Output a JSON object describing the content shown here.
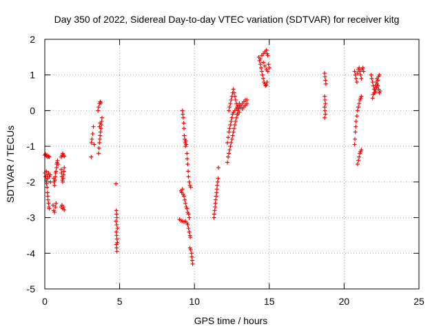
{
  "chart_data": {
    "type": "scatter",
    "title": "Day 350 of 2022, Sidereal Day-to-day VTEC variation (SDTVAR) for receiver kitg",
    "xlabel": "GPS time / hours",
    "ylabel": "SDTVAR / TECUs",
    "xlim": [
      0,
      25
    ],
    "ylim": [
      -5,
      2
    ],
    "xticks": [
      0,
      5,
      10,
      15,
      20,
      25
    ],
    "yticks": [
      -5,
      -4,
      -3,
      -2,
      -1,
      0,
      1,
      2
    ],
    "grid": true,
    "marker": "+",
    "color": "#ff0000",
    "series": [
      {
        "name": "SDTVAR",
        "points": [
          [
            0.0,
            -1.25
          ],
          [
            0.05,
            -1.22
          ],
          [
            0.1,
            -1.28
          ],
          [
            0.15,
            -1.25
          ],
          [
            0.2,
            -1.3
          ],
          [
            0.25,
            -1.28
          ],
          [
            0.3,
            -1.3
          ],
          [
            0.0,
            -1.75
          ],
          [
            0.05,
            -1.85
          ],
          [
            0.1,
            -1.95
          ],
          [
            0.12,
            -2.05
          ],
          [
            0.15,
            -2.15
          ],
          [
            0.18,
            -2.3
          ],
          [
            0.2,
            -2.4
          ],
          [
            0.22,
            -2.5
          ],
          [
            0.25,
            -2.6
          ],
          [
            0.28,
            -2.7
          ],
          [
            0.3,
            -2.75
          ],
          [
            0.1,
            -1.7
          ],
          [
            0.15,
            -1.8
          ],
          [
            0.2,
            -1.9
          ],
          [
            0.25,
            -1.75
          ],
          [
            0.3,
            -1.85
          ],
          [
            0.35,
            -1.8
          ],
          [
            0.38,
            -2.0
          ],
          [
            0.55,
            -2.65
          ],
          [
            0.6,
            -2.8
          ],
          [
            0.65,
            -2.85
          ],
          [
            0.7,
            -2.7
          ],
          [
            0.75,
            -2.6
          ],
          [
            0.6,
            -1.9
          ],
          [
            0.62,
            -2.0
          ],
          [
            0.65,
            -2.1
          ],
          [
            0.68,
            -1.95
          ],
          [
            0.7,
            -1.85
          ],
          [
            0.72,
            -1.75
          ],
          [
            0.75,
            -1.7
          ],
          [
            0.78,
            -1.6
          ],
          [
            0.8,
            -1.5
          ],
          [
            0.82,
            -1.45
          ],
          [
            0.85,
            -1.4
          ],
          [
            0.88,
            -1.5
          ],
          [
            1.1,
            -1.3
          ],
          [
            1.15,
            -1.25
          ],
          [
            1.2,
            -1.2
          ],
          [
            1.25,
            -1.25
          ],
          [
            1.3,
            -1.28
          ],
          [
            1.1,
            -1.65
          ],
          [
            1.12,
            -1.75
          ],
          [
            1.15,
            -1.85
          ],
          [
            1.18,
            -1.95
          ],
          [
            1.2,
            -2.0
          ],
          [
            1.22,
            -1.9
          ],
          [
            1.25,
            -1.8
          ],
          [
            1.28,
            -1.7
          ],
          [
            1.3,
            -1.6
          ],
          [
            1.1,
            -2.7
          ],
          [
            1.15,
            -2.65
          ],
          [
            1.2,
            -2.75
          ],
          [
            1.25,
            -2.7
          ],
          [
            1.3,
            -2.78
          ],
          [
            3.1,
            -1.3
          ],
          [
            3.12,
            -0.9
          ],
          [
            3.15,
            -0.8
          ],
          [
            3.2,
            -0.65
          ],
          [
            3.25,
            -0.45
          ],
          [
            3.3,
            -0.95
          ],
          [
            3.6,
            -1.2
          ],
          [
            3.62,
            -1.05
          ],
          [
            3.65,
            -0.9
          ],
          [
            3.68,
            -0.8
          ],
          [
            3.7,
            -0.7
          ],
          [
            3.72,
            -0.6
          ],
          [
            3.75,
            -0.5
          ],
          [
            3.78,
            -0.4
          ],
          [
            3.8,
            -0.3
          ],
          [
            3.82,
            -0.2
          ],
          [
            3.65,
            -0.45
          ],
          [
            3.7,
            -0.35
          ],
          [
            3.55,
            0.0
          ],
          [
            3.6,
            0.1
          ],
          [
            3.65,
            0.2
          ],
          [
            3.7,
            0.25
          ],
          [
            3.75,
            0.22
          ],
          [
            4.75,
            -2.05
          ],
          [
            4.78,
            -2.8
          ],
          [
            4.8,
            -2.9
          ],
          [
            4.82,
            -3.0
          ],
          [
            4.75,
            -3.1
          ],
          [
            4.8,
            -3.2
          ],
          [
            4.85,
            -3.3
          ],
          [
            4.78,
            -3.4
          ],
          [
            4.8,
            -3.5
          ],
          [
            4.82,
            -3.6
          ],
          [
            4.85,
            -3.7
          ],
          [
            4.78,
            -3.75
          ],
          [
            4.8,
            -3.85
          ],
          [
            4.82,
            -3.95
          ],
          [
            9.0,
            -3.05
          ],
          [
            9.1,
            -3.08
          ],
          [
            9.2,
            -3.1
          ],
          [
            9.3,
            -3.12
          ],
          [
            9.4,
            -3.1
          ],
          [
            9.5,
            -3.15
          ],
          [
            9.55,
            -3.2
          ],
          [
            9.6,
            -3.3
          ],
          [
            9.65,
            -3.4
          ],
          [
            9.7,
            -3.5
          ],
          [
            9.72,
            -3.55
          ],
          [
            9.1,
            -2.25
          ],
          [
            9.15,
            -2.3
          ],
          [
            9.2,
            -2.2
          ],
          [
            9.25,
            -2.35
          ],
          [
            9.3,
            -2.4
          ],
          [
            9.35,
            -2.5
          ],
          [
            9.4,
            -2.6
          ],
          [
            9.45,
            -2.7
          ],
          [
            9.5,
            -2.75
          ],
          [
            9.55,
            -2.85
          ],
          [
            9.6,
            -2.9
          ],
          [
            9.65,
            -3.0
          ],
          [
            9.2,
            0.0
          ],
          [
            9.22,
            -0.1
          ],
          [
            9.25,
            -0.2
          ],
          [
            9.28,
            -0.35
          ],
          [
            9.3,
            -0.5
          ],
          [
            9.32,
            -0.7
          ],
          [
            9.35,
            -0.8
          ],
          [
            9.38,
            -0.9
          ],
          [
            9.4,
            -1.0
          ],
          [
            9.42,
            -0.85
          ],
          [
            9.45,
            -0.95
          ],
          [
            9.5,
            -1.2
          ],
          [
            9.52,
            -1.35
          ],
          [
            9.55,
            -1.5
          ],
          [
            9.58,
            -1.7
          ],
          [
            9.6,
            -1.85
          ],
          [
            9.65,
            -2.0
          ],
          [
            9.7,
            -2.1
          ],
          [
            9.75,
            -2.15
          ],
          [
            9.7,
            -3.85
          ],
          [
            9.75,
            -3.9
          ],
          [
            9.8,
            -4.0
          ],
          [
            9.82,
            -4.1
          ],
          [
            9.85,
            -4.2
          ],
          [
            9.88,
            -4.3
          ],
          [
            11.3,
            -3.0
          ],
          [
            11.32,
            -2.9
          ],
          [
            11.35,
            -2.8
          ],
          [
            11.38,
            -2.7
          ],
          [
            11.4,
            -2.6
          ],
          [
            11.42,
            -2.5
          ],
          [
            11.45,
            -2.4
          ],
          [
            11.48,
            -2.3
          ],
          [
            11.5,
            -2.2
          ],
          [
            11.52,
            -2.1
          ],
          [
            11.55,
            -2.0
          ],
          [
            11.58,
            -1.9
          ],
          [
            11.6,
            -1.6
          ],
          [
            12.2,
            -1.45
          ],
          [
            12.25,
            -1.3
          ],
          [
            12.3,
            -1.2
          ],
          [
            12.35,
            -1.1
          ],
          [
            12.4,
            -1.0
          ],
          [
            12.45,
            -0.9
          ],
          [
            12.5,
            -0.8
          ],
          [
            12.55,
            -0.7
          ],
          [
            12.6,
            -0.6
          ],
          [
            12.65,
            -0.5
          ],
          [
            12.7,
            -0.4
          ],
          [
            12.75,
            -0.3
          ],
          [
            12.8,
            -0.2
          ],
          [
            12.85,
            -0.1
          ],
          [
            12.9,
            0.0
          ],
          [
            12.95,
            0.05
          ],
          [
            13.0,
            0.1
          ],
          [
            13.1,
            0.15
          ],
          [
            13.2,
            0.2
          ],
          [
            13.3,
            0.25
          ],
          [
            13.4,
            0.3
          ],
          [
            13.5,
            0.3
          ],
          [
            12.3,
            0.0
          ],
          [
            12.35,
            0.1
          ],
          [
            12.4,
            0.2
          ],
          [
            12.45,
            0.3
          ],
          [
            12.5,
            0.4
          ],
          [
            12.55,
            0.5
          ],
          [
            12.6,
            0.6
          ],
          [
            12.65,
            0.5
          ],
          [
            12.7,
            0.4
          ],
          [
            12.75,
            0.3
          ],
          [
            12.8,
            0.2
          ],
          [
            12.85,
            0.1
          ],
          [
            12.9,
            0.15
          ],
          [
            13.0,
            0.2
          ],
          [
            13.1,
            0.1
          ],
          [
            13.2,
            0.05
          ],
          [
            13.3,
            0.1
          ],
          [
            13.4,
            0.15
          ],
          [
            13.5,
            0.2
          ],
          [
            12.2,
            -0.9
          ],
          [
            12.25,
            -0.75
          ],
          [
            12.3,
            -0.6
          ],
          [
            12.35,
            -0.5
          ],
          [
            12.4,
            -0.4
          ],
          [
            12.45,
            -0.3
          ],
          [
            12.5,
            -0.2
          ],
          [
            12.55,
            -0.1
          ],
          [
            12.6,
            -0.05
          ],
          [
            12.7,
            0.0
          ],
          [
            12.8,
            0.05
          ],
          [
            12.9,
            -0.1
          ],
          [
            13.0,
            -0.05
          ],
          [
            14.3,
            1.5
          ],
          [
            14.35,
            1.4
          ],
          [
            14.4,
            1.3
          ],
          [
            14.45,
            1.2
          ],
          [
            14.5,
            1.1
          ],
          [
            14.55,
            1.0
          ],
          [
            14.6,
            0.9
          ],
          [
            14.65,
            0.8
          ],
          [
            14.7,
            0.75
          ],
          [
            14.75,
            0.7
          ],
          [
            14.8,
            0.72
          ],
          [
            14.85,
            0.8
          ],
          [
            14.4,
            1.45
          ],
          [
            14.5,
            1.55
          ],
          [
            14.6,
            1.6
          ],
          [
            14.7,
            1.65
          ],
          [
            14.8,
            1.7
          ],
          [
            14.85,
            1.6
          ],
          [
            14.9,
            1.55
          ],
          [
            14.95,
            1.3
          ],
          [
            15.0,
            1.2
          ],
          [
            14.9,
            1.1
          ],
          [
            14.8,
            1.15
          ],
          [
            14.7,
            1.25
          ],
          [
            14.6,
            1.35
          ],
          [
            18.7,
            1.05
          ],
          [
            18.72,
            0.95
          ],
          [
            18.75,
            0.85
          ],
          [
            18.78,
            0.75
          ],
          [
            18.7,
            0.4
          ],
          [
            18.72,
            0.3
          ],
          [
            18.75,
            0.2
          ],
          [
            18.7,
            0.1
          ],
          [
            18.72,
            0.0
          ],
          [
            18.75,
            -0.1
          ],
          [
            18.7,
            -0.2
          ],
          [
            20.7,
            1.1
          ],
          [
            20.75,
            1.0
          ],
          [
            20.8,
            0.9
          ],
          [
            20.85,
            0.8
          ],
          [
            20.9,
            1.05
          ],
          [
            20.95,
            1.15
          ],
          [
            21.0,
            1.2
          ],
          [
            21.05,
            1.1
          ],
          [
            21.1,
            1.0
          ],
          [
            21.15,
            0.9
          ],
          [
            21.2,
            1.15
          ],
          [
            21.25,
            1.2
          ],
          [
            21.3,
            1.1
          ],
          [
            20.7,
            -0.95
          ],
          [
            20.72,
            -0.8
          ],
          [
            20.75,
            -0.6
          ],
          [
            20.78,
            -0.45
          ],
          [
            20.8,
            -0.3
          ],
          [
            20.85,
            -0.15
          ],
          [
            20.9,
            0.0
          ],
          [
            20.95,
            0.1
          ],
          [
            21.0,
            0.2
          ],
          [
            21.05,
            0.3
          ],
          [
            21.1,
            0.35
          ],
          [
            21.15,
            0.4
          ],
          [
            20.9,
            -1.5
          ],
          [
            20.95,
            -1.4
          ],
          [
            21.0,
            -1.3
          ],
          [
            21.05,
            -1.2
          ],
          [
            21.1,
            -1.15
          ],
          [
            21.15,
            -1.1
          ],
          [
            21.8,
            1.0
          ],
          [
            21.85,
            0.9
          ],
          [
            21.9,
            0.8
          ],
          [
            21.95,
            0.7
          ],
          [
            22.0,
            0.6
          ],
          [
            22.05,
            0.5
          ],
          [
            22.1,
            0.55
          ],
          [
            22.15,
            0.65
          ],
          [
            22.2,
            0.75
          ],
          [
            22.25,
            0.85
          ],
          [
            22.3,
            0.95
          ],
          [
            22.35,
            1.0
          ],
          [
            21.9,
            0.35
          ],
          [
            21.95,
            0.45
          ],
          [
            22.0,
            0.5
          ],
          [
            22.05,
            0.6
          ],
          [
            22.1,
            0.7
          ],
          [
            22.15,
            0.8
          ],
          [
            22.2,
            0.9
          ],
          [
            22.25,
            0.7
          ],
          [
            22.3,
            0.6
          ],
          [
            22.35,
            0.5
          ],
          [
            22.4,
            0.55
          ]
        ]
      }
    ]
  }
}
